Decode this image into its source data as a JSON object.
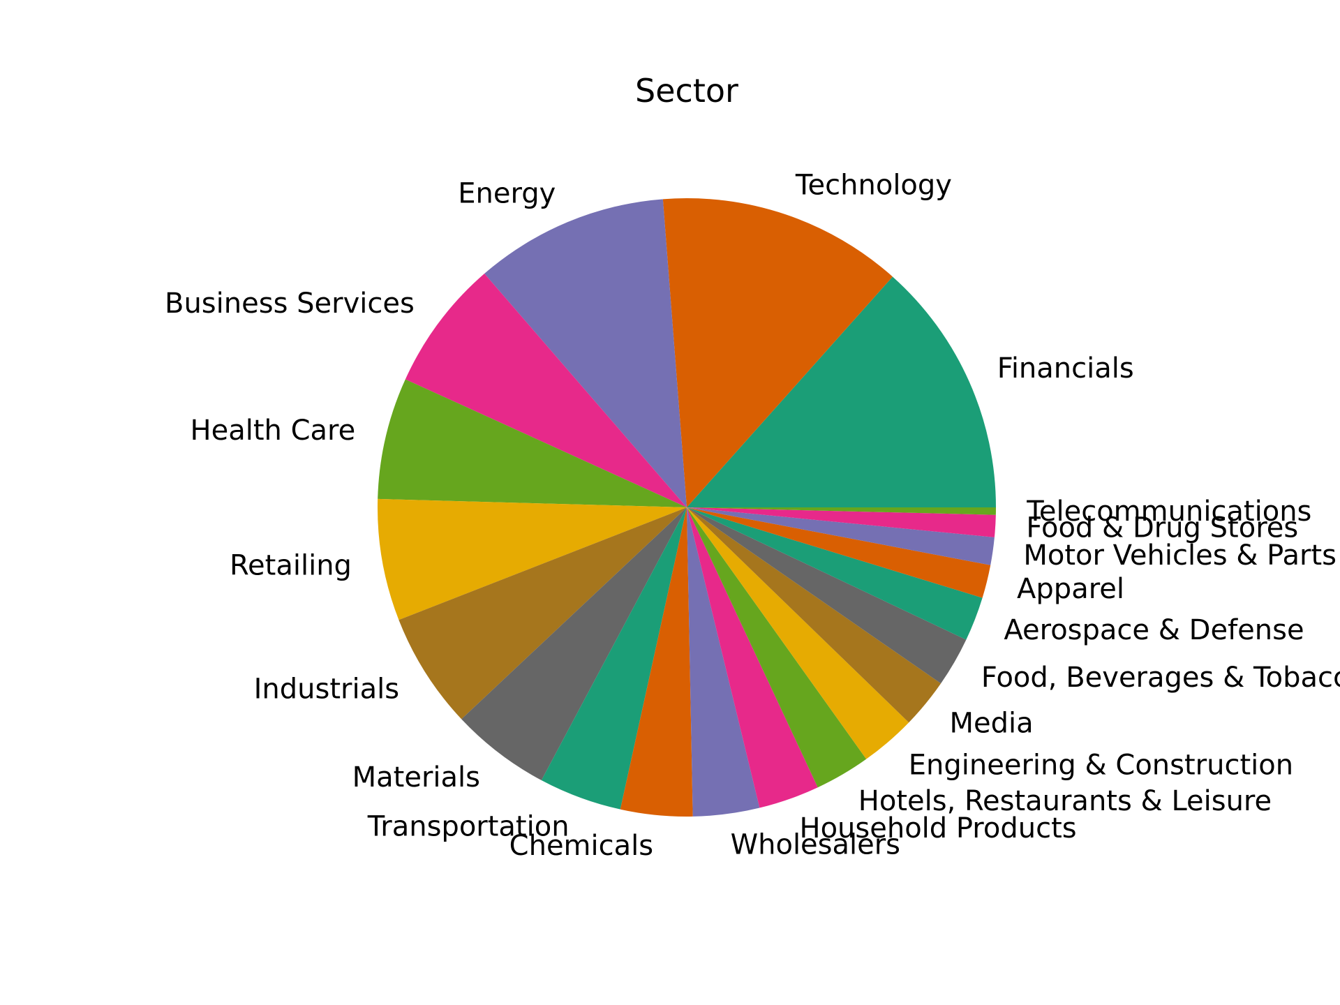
{
  "chart_data": {
    "type": "pie",
    "title": "Sector",
    "start_angle_deg": 0,
    "direction": "counterclockwise",
    "slices": [
      {
        "label": "Financials",
        "value": 13.9,
        "color": "#1b9e77"
      },
      {
        "label": "Technology",
        "value": 13.3,
        "color": "#d95f02"
      },
      {
        "label": "Energy",
        "value": 10.5,
        "color": "#7570b3"
      },
      {
        "label": "Business Services",
        "value": 7.1,
        "color": "#e7298a"
      },
      {
        "label": "Health Care",
        "value": 6.6,
        "color": "#66a61e"
      },
      {
        "label": "Retailing",
        "value": 6.6,
        "color": "#e6ab02"
      },
      {
        "label": "Industrials",
        "value": 6.3,
        "color": "#a6761d"
      },
      {
        "label": "Materials",
        "value": 5.4,
        "color": "#666666"
      },
      {
        "label": "Transportation",
        "value": 4.5,
        "color": "#1b9e77"
      },
      {
        "label": "Chemicals",
        "value": 3.9,
        "color": "#d95f02"
      },
      {
        "label": "Wholesalers",
        "value": 3.6,
        "color": "#7570b3"
      },
      {
        "label": "Household Products",
        "value": 3.3,
        "color": "#e7298a"
      },
      {
        "label": "Hotels, Restaurants & Leisure",
        "value": 3.0,
        "color": "#66a61e"
      },
      {
        "label": "Engineering & Construction",
        "value": 3.0,
        "color": "#e6ab02"
      },
      {
        "label": "Media",
        "value": 2.7,
        "color": "#a6761d"
      },
      {
        "label": "Food, Beverages & Tobacco",
        "value": 2.7,
        "color": "#666666"
      },
      {
        "label": "Aerospace & Defense",
        "value": 2.4,
        "color": "#1b9e77"
      },
      {
        "label": "Apparel",
        "value": 1.8,
        "color": "#d95f02"
      },
      {
        "label": "Motor Vehicles & Parts",
        "value": 1.5,
        "color": "#7570b3"
      },
      {
        "label": "Food &  Drug Stores",
        "value": 1.2,
        "color": "#e7298a"
      },
      {
        "label": "Telecommunications",
        "value": 0.4,
        "color": "#66a61e"
      }
    ]
  }
}
